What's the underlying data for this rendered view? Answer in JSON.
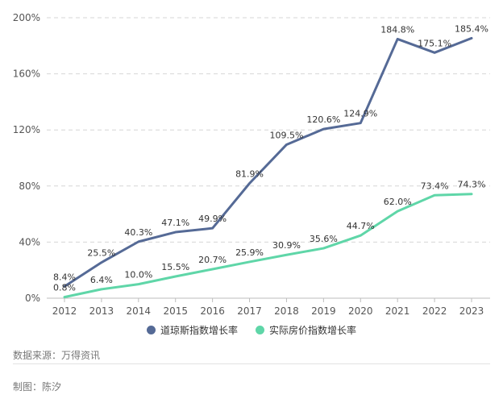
{
  "chart_data": {
    "type": "line",
    "categories": [
      "2012",
      "2013",
      "2014",
      "2015",
      "2016",
      "2017",
      "2018",
      "2019",
      "2020",
      "2021",
      "2022",
      "2023"
    ],
    "ylim": [
      0,
      200
    ],
    "yticks": [
      0,
      40,
      80,
      120,
      160,
      200
    ],
    "ytick_labels": [
      "0%",
      "40%",
      "80%",
      "120%",
      "160%",
      "200%"
    ],
    "grid": true,
    "legend_position": "bottom",
    "series": [
      {
        "name": "道琼斯指数增长率",
        "color": "#556a96",
        "values": [
          8.4,
          25.5,
          40.3,
          47.1,
          49.9,
          81.9,
          109.5,
          120.6,
          124.9,
          184.8,
          175.1,
          185.4
        ],
        "labels": [
          "8.4%",
          "25.5%",
          "40.3%",
          "47.1%",
          "49.9%",
          "81.9%",
          "109.5%",
          "120.6%",
          "124.9%",
          "184.8%",
          "175.1%",
          "185.4%"
        ]
      },
      {
        "name": "实际房价指数增长率",
        "color": "#5fd6a8",
        "values": [
          0.8,
          6.4,
          10.0,
          15.5,
          20.7,
          25.9,
          30.9,
          35.6,
          44.7,
          62.0,
          73.4,
          74.3
        ],
        "labels": [
          "0.8%",
          "6.4%",
          "10.0%",
          "15.5%",
          "20.7%",
          "25.9%",
          "30.9%",
          "35.6%",
          "44.7%",
          "62.0%",
          "73.4%",
          "74.3%"
        ]
      }
    ]
  },
  "legend": {
    "dow": "道琼斯指数增长率",
    "house": "实际房价指数增长率"
  },
  "footer": {
    "source": "数据来源：万得资讯",
    "author": "制图：陈汐"
  }
}
